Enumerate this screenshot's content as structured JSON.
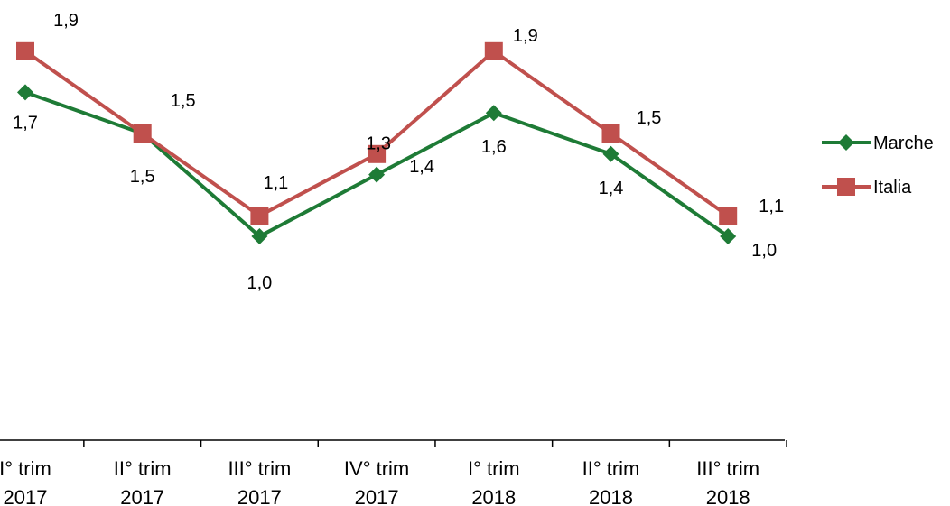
{
  "chart_data": {
    "type": "line",
    "title": "",
    "xlabel": "",
    "ylabel": "",
    "categories": [
      [
        "I° trim",
        "2017"
      ],
      [
        "II° trim",
        "2017"
      ],
      [
        "III° trim",
        "2017"
      ],
      [
        "IV° trim",
        "2017"
      ],
      [
        "I° trim",
        "2018"
      ],
      [
        "II° trim",
        "2018"
      ],
      [
        "III° trim",
        "2018"
      ]
    ],
    "series": [
      {
        "name": "Marche",
        "marker": "diamond",
        "color": "#1e7b36",
        "values": [
          1.7,
          1.5,
          1.0,
          1.3,
          1.6,
          1.4,
          1.0
        ],
        "labels": [
          "1,7",
          "1,5",
          "1,0",
          "1,3",
          "1,6",
          "1,4",
          "1,0"
        ]
      },
      {
        "name": "Italia",
        "marker": "square",
        "color": "#c0504d",
        "values": [
          1.9,
          1.5,
          1.1,
          1.4,
          1.9,
          1.5,
          1.1
        ],
        "labels": [
          "1,9",
          "1,5",
          "1,1",
          "1,4",
          "1,9",
          "1,5",
          "1,1"
        ]
      }
    ],
    "legend": "right",
    "grid": false
  }
}
